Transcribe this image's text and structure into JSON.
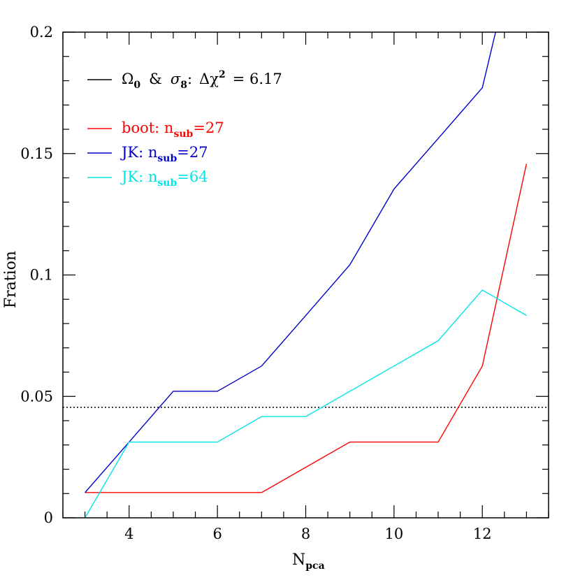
{
  "chart_data": {
    "type": "line",
    "xlabel": "N",
    "xlabel_sub": "pca",
    "ylabel": "Fration",
    "xlim": [
      2.5,
      13.5
    ],
    "ylim": [
      0,
      0.2
    ],
    "x_ticks": [
      4,
      6,
      8,
      10,
      12
    ],
    "x_tick_labels": [
      "4",
      "6",
      "8",
      "10",
      "12"
    ],
    "y_ticks": [
      0,
      0.05,
      0.1,
      0.15,
      0.2
    ],
    "y_tick_labels": [
      "0",
      "0.05",
      "0.1",
      "0.15",
      "0.2"
    ],
    "x_minor_step": 0.5,
    "y_minor_step": 0.01,
    "reference_line": {
      "y": 0.0455,
      "style": "dotted",
      "color": "#000000"
    },
    "header_entry": {
      "color": "#000000",
      "omega": "Ω",
      "omega_sub": "0",
      "amp": "&",
      "sigma": "σ",
      "sigma_sub": "8",
      "colon": ":",
      "delta_chi": "Δχ",
      "sup": "2",
      "rest": "= 6.17"
    },
    "series": [
      {
        "label_main": "boot: n",
        "label_sub": "sub",
        "label_end": "=27",
        "color": "#ff0000",
        "x": [
          3,
          4,
          5,
          6,
          7,
          8,
          9,
          10,
          11,
          12,
          13
        ],
        "y": [
          0.0104,
          0.0104,
          0.0104,
          0.0104,
          0.0104,
          0.0208,
          0.0312,
          0.0312,
          0.0312,
          0.0625,
          0.1458
        ]
      },
      {
        "label_main": "JK: n",
        "label_sub": "sub",
        "label_end": "=27",
        "color": "#0000cc",
        "x": [
          3,
          4,
          5,
          6,
          7,
          8,
          9,
          10,
          11,
          12,
          12.3
        ],
        "y": [
          0.0104,
          0.0312,
          0.0521,
          0.0521,
          0.0625,
          0.0833,
          0.1042,
          0.1354,
          0.1562,
          0.1771,
          0.2
        ]
      },
      {
        "label_main": "JK: n",
        "label_sub": "sub",
        "label_end": "=64",
        "color": "#00e5e5",
        "x": [
          3,
          4,
          5,
          6,
          7,
          8,
          9,
          10,
          11,
          12,
          13
        ],
        "y": [
          0.0,
          0.0312,
          0.0312,
          0.0312,
          0.0417,
          0.0417,
          0.0521,
          0.0625,
          0.0729,
          0.0938,
          0.0833
        ]
      }
    ]
  }
}
